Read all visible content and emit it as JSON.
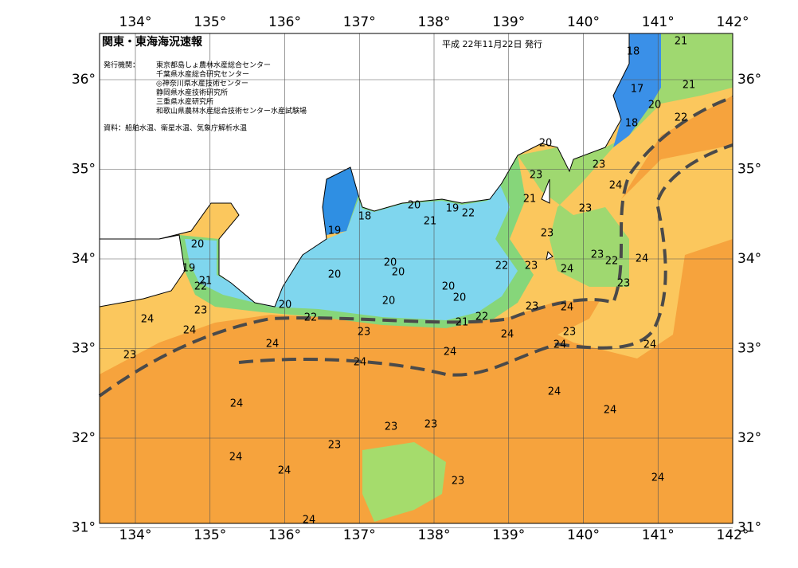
{
  "header": {
    "title": "関東・東海海況速報",
    "date": "平成 22年11月22日 発行"
  },
  "issuers": {
    "label": "発行機関：",
    "agencies": [
      "東京都島しょ農林水産総合センター",
      "千葉県水産総合研究センター",
      "◎神奈川県水産技術センター",
      "静岡県水産技術研究所",
      "三重県水産研究所",
      "和歌山県農林水産総合技術センター水産試験場"
    ]
  },
  "source": "資料：船舶水温、衛星水温、気象庁解析水温",
  "lon_ticks": [
    {
      "value": 134,
      "label": "134°"
    },
    {
      "value": 135,
      "label": "135°"
    },
    {
      "value": 136,
      "label": "136°"
    },
    {
      "value": 137,
      "label": "137°"
    },
    {
      "value": 138,
      "label": "138°"
    },
    {
      "value": 139,
      "label": "139°"
    },
    {
      "value": 140,
      "label": "140°"
    },
    {
      "value": 141,
      "label": "141°"
    },
    {
      "value": 142,
      "label": "142°"
    }
  ],
  "lat_ticks": [
    {
      "value": 36,
      "label": "36°"
    },
    {
      "value": 35,
      "label": "35°"
    },
    {
      "value": 34,
      "label": "34°"
    },
    {
      "value": 33,
      "label": "33°"
    },
    {
      "value": 32,
      "label": "32°"
    },
    {
      "value": 31,
      "label": "31°"
    }
  ],
  "contour_labels": [
    "21",
    "18",
    "21",
    "17",
    "20",
    "18",
    "22",
    "20",
    "23",
    "24",
    "23",
    "21",
    "23",
    "18",
    "20",
    "19",
    "22",
    "21",
    "19",
    "23",
    "20",
    "20",
    "20",
    "22",
    "23",
    "24",
    "23",
    "22",
    "24",
    "20",
    "19",
    "21",
    "22",
    "20",
    "20",
    "20",
    "23",
    "20",
    "23",
    "24",
    "23",
    "24",
    "22",
    "22",
    "21",
    "23",
    "24",
    "23",
    "24",
    "24",
    "24",
    "24",
    "24",
    "23",
    "24",
    "24",
    "24",
    "24",
    "23",
    "23",
    "23",
    "24",
    "24",
    "23",
    "24",
    "24"
  ]
}
